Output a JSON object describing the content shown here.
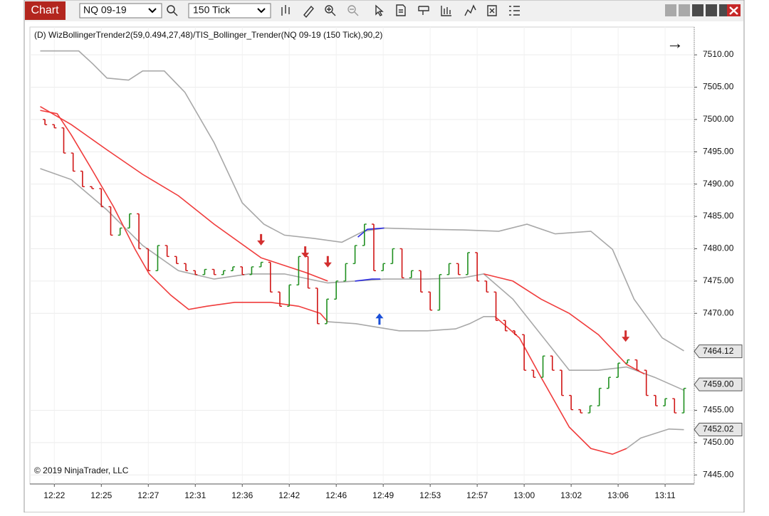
{
  "toolbar": {
    "tab": "Chart",
    "instrument": "NQ 09-19",
    "interval": "150 Tick"
  },
  "chart_data": {
    "type": "ohlc",
    "title": "(D) WizBollingerTrender2(59,0.494,27,48)/TIS_Bollinger_Trender(NQ 09-19 (150 Tick),90,2)",
    "copyright": "© 2019 NinjaTrader, LLC",
    "arrow": "→",
    "xlim": [
      -1.6,
      69.1
    ],
    "ylim": [
      7443.6,
      7514.3
    ],
    "grid": true,
    "up_color": "#1f8f1f",
    "down_color": "#d01515",
    "xticks": [
      {
        "value": 1,
        "label": "12:22"
      },
      {
        "value": 6,
        "label": "12:25"
      },
      {
        "value": 11,
        "label": "12:27"
      },
      {
        "value": 16,
        "label": "12:31"
      },
      {
        "value": 21,
        "label": "12:36"
      },
      {
        "value": 26,
        "label": "12:42"
      },
      {
        "value": 31,
        "label": "12:46"
      },
      {
        "value": 36,
        "label": "12:49"
      },
      {
        "value": 41,
        "label": "12:53"
      },
      {
        "value": 46,
        "label": "12:57"
      },
      {
        "value": 51,
        "label": "13:00"
      },
      {
        "value": 56,
        "label": "13:02"
      },
      {
        "value": 61,
        "label": "13:06"
      },
      {
        "value": 66,
        "label": "13:11"
      }
    ],
    "yticks": [
      {
        "value": 7510,
        "label": "7510.00"
      },
      {
        "value": 7505,
        "label": "7505.00"
      },
      {
        "value": 7500,
        "label": "7500.00"
      },
      {
        "value": 7495,
        "label": "7495.00"
      },
      {
        "value": 7490,
        "label": "7490.00"
      },
      {
        "value": 7485,
        "label": "7485.00"
      },
      {
        "value": 7480,
        "label": "7480.00"
      },
      {
        "value": 7475,
        "label": "7475.00"
      },
      {
        "value": 7470,
        "label": "7470.00"
      },
      {
        "value": 7455,
        "label": "7455.00"
      },
      {
        "value": 7450,
        "label": "7450.00"
      },
      {
        "value": 7445,
        "label": "7445.00"
      }
    ],
    "open": [
      7500.0,
      7499.2,
      7498.7,
      7494.8,
      7492.0,
      7489.6,
      7489.3,
      7486.5,
      7482.1,
      7483.2,
      7485.4,
      7480.0,
      7476.6,
      7480.5,
      7478.8,
      7477.7,
      7476.6,
      7476.0,
      7476.8,
      7476.0,
      7476.6,
      7477.2,
      7476.0,
      7477.2,
      7477.9,
      7473.3,
      7471.1,
      7474.4,
      7478.8,
      7473.9,
      7468.4,
      7472.2,
      7475.0,
      7477.7,
      7480.5,
      7483.8,
      7476.6,
      7477.7,
      7480.0,
      7475.5,
      7476.6,
      7473.3,
      7470.5,
      7476.0,
      7477.7,
      7476.0,
      7479.4,
      7475.0,
      7473.3,
      7468.9,
      7467.3,
      7466.7,
      7461.2,
      7460.1,
      7463.4,
      7461.2,
      7457.3,
      7455.1,
      7454.6,
      7455.7,
      7458.4,
      7460.1,
      7462.3,
      7462.8,
      7461.2,
      7457.3,
      7455.7,
      7456.8,
      7454.6
    ],
    "close": [
      7499.2,
      7498.7,
      7494.8,
      7492.0,
      7489.6,
      7489.3,
      7486.5,
      7482.1,
      7483.2,
      7485.4,
      7480.0,
      7476.6,
      7480.5,
      7478.8,
      7477.7,
      7476.6,
      7476.0,
      7476.8,
      7476.0,
      7476.6,
      7477.2,
      7476.0,
      7477.2,
      7477.9,
      7473.3,
      7471.1,
      7474.4,
      7478.8,
      7473.9,
      7468.4,
      7472.2,
      7475.0,
      7477.7,
      7480.5,
      7483.8,
      7476.6,
      7477.7,
      7480.0,
      7475.5,
      7476.6,
      7473.3,
      7470.5,
      7476.0,
      7477.7,
      7476.0,
      7479.4,
      7475.0,
      7473.3,
      7468.9,
      7467.3,
      7466.7,
      7461.2,
      7460.1,
      7463.4,
      7461.2,
      7457.3,
      7455.1,
      7454.6,
      7455.7,
      7458.4,
      7460.1,
      7462.3,
      7462.8,
      7461.2,
      7457.3,
      7455.7,
      7456.8,
      7454.6,
      7458.4
    ],
    "lines": [
      {
        "color": "#a8a8a8",
        "x": [
          -0.5,
          3.6,
          5.1,
          6.6,
          8.9,
          10.4,
          12.7,
          14.9,
          18.0,
          21.0,
          23.3,
          25.5,
          28.6,
          31.6,
          33.9,
          36.1,
          40.7,
          44.5,
          48.3,
          51.3,
          54.3,
          58.1,
          60.4,
          62.7,
          65.7,
          68.0
        ],
        "values": [
          7510.6,
          7510.6,
          7508.6,
          7506.4,
          7506.1,
          7507.5,
          7507.5,
          7504.2,
          7496.4,
          7487.1,
          7483.8,
          7482.1,
          7481.6,
          7481.0,
          7482.7,
          7483.2,
          7483.0,
          7482.9,
          7482.7,
          7483.8,
          7482.3,
          7482.7,
          7479.9,
          7472.2,
          7466.2,
          7464.2
        ]
      },
      {
        "color": "#a8a8a8",
        "x": [
          -0.5,
          2.8,
          6.6,
          10.4,
          14.2,
          18.0,
          21.7,
          25.5,
          30.1,
          36.1,
          40.7,
          44.5,
          46.7,
          49.8,
          52.8,
          55.8,
          58.9,
          61.9,
          64.9,
          68.0
        ],
        "values": [
          7492.4,
          7490.7,
          7486.0,
          7480.5,
          7476.6,
          7475.3,
          7476.1,
          7476.1,
          7474.7,
          7475.3,
          7475.3,
          7475.5,
          7476.1,
          7472.2,
          7466.7,
          7461.2,
          7461.2,
          7461.7,
          7460.1,
          7458.1
        ]
      },
      {
        "color": "#a8a8a8",
        "x": [
          30.1,
          33.1,
          37.7,
          40.7,
          43.7,
          45.2,
          46.7,
          47.9,
          55.0,
          61.9,
          63.4,
          66.4,
          68.0
        ],
        "values": [
          7468.7,
          7468.4,
          7467.3,
          7467.3,
          7467.6,
          7468.4,
          7469.5,
          7469.5,
          null,
          7449.1,
          7450.7,
          7452.1,
          7452.0
        ]
      },
      {
        "color": "#f03c3c",
        "x": [
          -0.5,
          2.8,
          6.6,
          10.4,
          14.2,
          18.0,
          23.0,
          27.8,
          30.1,
          38.0,
          46.7,
          49.8,
          52.8,
          55.8,
          58.9,
          61.9,
          63.8
        ],
        "values": [
          7502.0,
          7499.2,
          7495.3,
          7491.5,
          7488.2,
          7483.8,
          7478.6,
          7476.3,
          7475.0,
          null,
          7476.1,
          7475.0,
          7472.2,
          7470.0,
          7466.7,
          7462.1,
          7460.6
        ]
      },
      {
        "color": "#f03c3c",
        "x": [
          -0.5,
          1.3,
          2.8,
          5.1,
          7.3,
          9.6,
          11.1,
          13.4,
          15.3,
          17.2,
          20.2,
          24.0,
          27.0,
          29.3,
          30.1,
          38.0,
          47.9,
          50.5,
          52.8,
          55.8,
          58.1,
          60.4,
          61.9
        ],
        "values": [
          7501.4,
          7500.9,
          7497.6,
          7492.0,
          7486.5,
          7479.9,
          7476.1,
          7472.8,
          7470.6,
          7471.1,
          7471.7,
          7471.7,
          7471.1,
          7470.0,
          7468.7,
          null,
          7469.5,
          7466.2,
          7460.1,
          7452.4,
          7449.1,
          7448.2,
          7449.1
        ]
      },
      {
        "color": "#2a2ae0",
        "x": [
          33.3,
          34.3,
          36.1,
          34.5,
          33.0,
          34.8,
          35.7
        ],
        "values": [
          7481.8,
          7483.0,
          7483.2,
          null,
          7475.0,
          7475.3,
          7475.3
        ]
      }
    ],
    "signals": [
      {
        "x": 23.0,
        "value": 7480.5,
        "color": "#d32f2f",
        "direction": "down"
      },
      {
        "x": 27.7,
        "value": 7478.6,
        "color": "#d32f2f",
        "direction": "down"
      },
      {
        "x": 30.1,
        "value": 7477.1,
        "color": "#d32f2f",
        "direction": "down"
      },
      {
        "x": 35.6,
        "value": 7470.0,
        "color": "#1a4fd8",
        "direction": "up"
      },
      {
        "x": 61.8,
        "value": 7465.6,
        "color": "#d32f2f",
        "direction": "down"
      }
    ],
    "price_markers": [
      {
        "value": 7464.12,
        "label": "7464.12"
      },
      {
        "value": 7459.0,
        "label": "7459.00"
      },
      {
        "value": 7452.02,
        "label": "7452.02"
      }
    ]
  }
}
